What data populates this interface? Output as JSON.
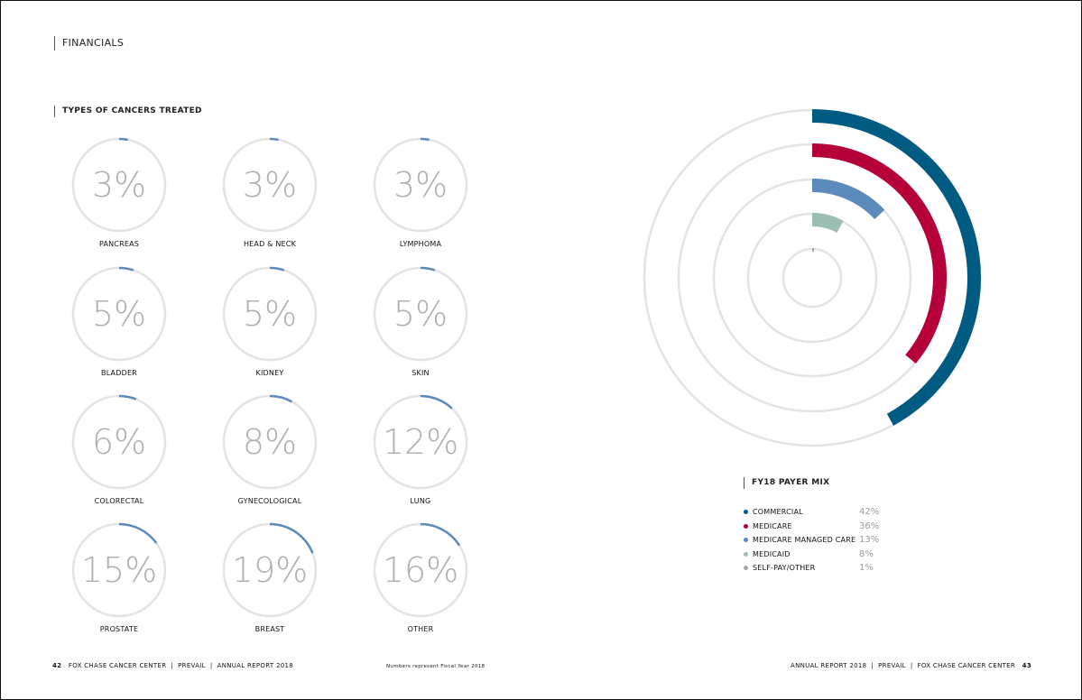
{
  "header": {
    "section_title": "FINANCIALS"
  },
  "cancers": {
    "title": "TYPES OF CANCERS TREATED",
    "accent_color": "#5b8bbd",
    "track_color": "#e3e3e3",
    "items": [
      {
        "label": "PANCREAS",
        "value": 3,
        "display": "3%"
      },
      {
        "label": "HEAD & NECK",
        "value": 3,
        "display": "3%"
      },
      {
        "label": "LYMPHOMA",
        "value": 3,
        "display": "3%"
      },
      {
        "label": "BLADDER",
        "value": 5,
        "display": "5%"
      },
      {
        "label": "KIDNEY",
        "value": 5,
        "display": "5%"
      },
      {
        "label": "SKIN",
        "value": 5,
        "display": "5%"
      },
      {
        "label": "COLORECTAL",
        "value": 6,
        "display": "6%"
      },
      {
        "label": "GYNECOLOGICAL",
        "value": 8,
        "display": "8%"
      },
      {
        "label": "LUNG",
        "value": 12,
        "display": "12%"
      },
      {
        "label": "PROSTATE",
        "value": 15,
        "display": "15%"
      },
      {
        "label": "BREAST",
        "value": 19,
        "display": "19%"
      },
      {
        "label": "OTHER",
        "value": 16,
        "display": "16%"
      }
    ]
  },
  "chart_data": [
    {
      "type": "radial-bar",
      "title": "TYPES OF CANCERS TREATED",
      "categories": [
        "PANCREAS",
        "HEAD & NECK",
        "LYMPHOMA",
        "BLADDER",
        "KIDNEY",
        "SKIN",
        "COLORECTAL",
        "GYNECOLOGICAL",
        "LUNG",
        "PROSTATE",
        "BREAST",
        "OTHER"
      ],
      "values": [
        3,
        3,
        3,
        5,
        5,
        5,
        6,
        8,
        12,
        15,
        19,
        16
      ],
      "unit": "%"
    },
    {
      "type": "radial-bar",
      "title": "FY18 PAYER MIX",
      "categories": [
        "COMMERCIAL",
        "MEDICARE",
        "MEDICARE MANAGED CARE",
        "MEDICAID",
        "SELF-PAY/OTHER"
      ],
      "values": [
        42,
        36,
        13,
        8,
        1
      ],
      "unit": "%"
    }
  ],
  "payer_mix": {
    "title": "FY18 PAYER MIX",
    "track_color": "#e3e3e3",
    "items": [
      {
        "label": "COMMERCIAL",
        "value": 42,
        "display": "42%",
        "color": "#005b82"
      },
      {
        "label": "MEDICARE",
        "value": 36,
        "display": "36%",
        "color": "#b5003a"
      },
      {
        "label": "MEDICARE MANAGED CARE",
        "value": 13,
        "display": "13%",
        "color": "#5b8bbd"
      },
      {
        "label": "MEDICAID",
        "value": 8,
        "display": "8%",
        "color": "#9bbfb0"
      },
      {
        "label": "SELF-PAY/OTHER",
        "value": 1,
        "display": "1%",
        "color": "#a5a5a5"
      }
    ]
  },
  "footer": {
    "left_page_number": "42",
    "left_text": "FOX CHASE CANCER CENTER  |  PREVAIL  |  ANNUAL REPORT 2018",
    "center_note": "Numbers represent Fiscal Year 2018",
    "right_text": "ANNUAL REPORT 2018  |  PREVAIL  |  FOX CHASE CANCER CENTER",
    "right_page_number": "43"
  }
}
